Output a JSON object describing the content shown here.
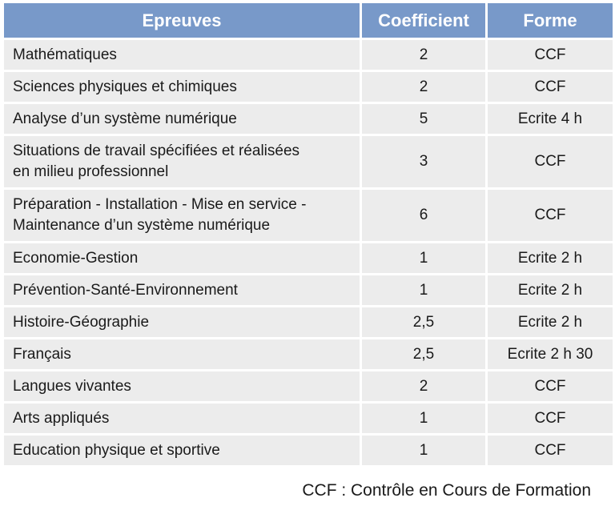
{
  "table": {
    "headers": [
      "Epreuves",
      "Coefficient",
      "Forme"
    ],
    "rows": [
      {
        "epreuve": "Mathématiques",
        "coefficient": "2",
        "forme": "CCF"
      },
      {
        "epreuve": "Sciences physiques et chimiques",
        "coefficient": "2",
        "forme": "CCF"
      },
      {
        "epreuve": "Analyse d’un système numérique",
        "coefficient": "5",
        "forme": "Ecrite 4 h"
      },
      {
        "epreuve_line1": "Situations de travail spécifiées et réalisées",
        "epreuve_line2": "en milieu professionnel",
        "coefficient": "3",
        "forme": "CCF"
      },
      {
        "epreuve_line1": "Préparation - Installation - Mise en service -",
        "epreuve_line2": "Maintenance d’un système numérique",
        "coefficient": "6",
        "forme": "CCF"
      },
      {
        "epreuve": "Economie-Gestion",
        "coefficient": "1",
        "forme": "Ecrite 2 h"
      },
      {
        "epreuve": "Prévention-Santé-Environnement",
        "coefficient": "1",
        "forme": "Ecrite 2 h"
      },
      {
        "epreuve": "Histoire-Géographie",
        "coefficient": "2,5",
        "forme": "Ecrite 2 h"
      },
      {
        "epreuve": "Français",
        "coefficient": "2,5",
        "forme": "Ecrite 2 h 30"
      },
      {
        "epreuve": "Langues vivantes",
        "coefficient": "2",
        "forme": "CCF"
      },
      {
        "epreuve": "Arts appliqués",
        "coefficient": "1",
        "forme": "CCF"
      },
      {
        "epreuve": "Education physique et sportive",
        "coefficient": "1",
        "forme": "CCF"
      }
    ]
  },
  "footnote": "CCF : Contrôle en Cours de Formation",
  "colors": {
    "header_bg": "#7899c9",
    "header_text": "#ffffff",
    "cell_bg": "#ececec"
  }
}
